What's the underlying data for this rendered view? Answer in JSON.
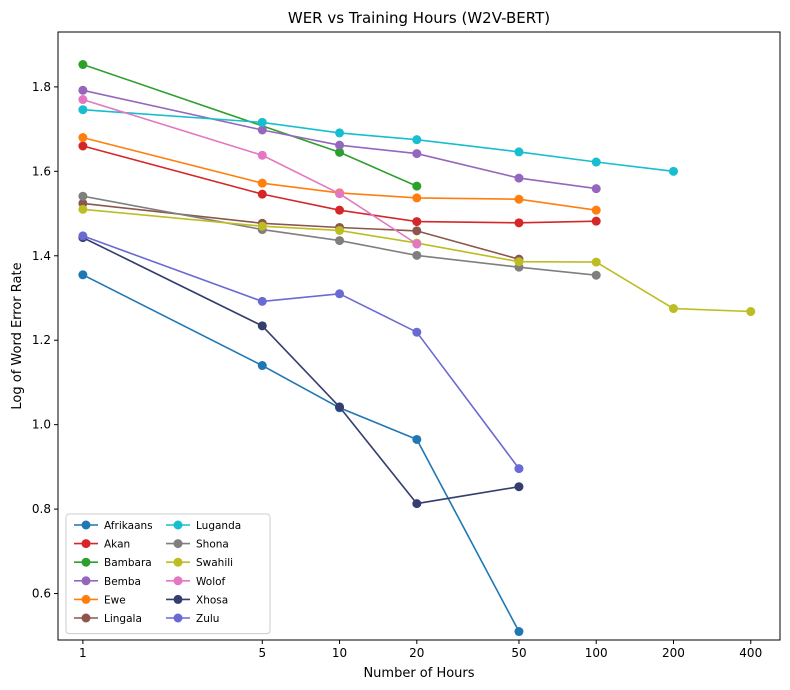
{
  "chart_data": {
    "type": "line",
    "title": "WER vs Training Hours (W2V-BERT)",
    "xlabel": "Number of Hours",
    "ylabel": "Log of Word Error Rate",
    "xscale": "log",
    "xlim": [
      0.8,
      520
    ],
    "ylim": [
      0.49,
      1.93
    ],
    "xticks": [
      1,
      5,
      10,
      20,
      50,
      100,
      200,
      400
    ],
    "xtick_labels": [
      "1",
      "5",
      "10",
      "20",
      "50",
      "100",
      "200",
      "400"
    ],
    "yticks": [
      0.6,
      0.8,
      1.0,
      1.2,
      1.4,
      1.6,
      1.8
    ],
    "ytick_labels": [
      "0.6",
      "0.8",
      "1.0",
      "1.2",
      "1.4",
      "1.6",
      "1.8"
    ],
    "grid": false,
    "legend_position": "bottom-left",
    "legend_columns": 2,
    "series": [
      {
        "name": "Afrikaans",
        "color": "#1f77b4",
        "x": [
          1,
          5,
          10,
          20,
          50
        ],
        "y": [
          1.355,
          1.14,
          1.04,
          0.965,
          0.51
        ]
      },
      {
        "name": "Akan",
        "color": "#d62728",
        "x": [
          1,
          5,
          10,
          20,
          50,
          100
        ],
        "y": [
          1.66,
          1.546,
          1.508,
          1.481,
          1.478,
          1.482
        ]
      },
      {
        "name": "Bambara",
        "color": "#2ca02c",
        "x": [
          1,
          10,
          20
        ],
        "y": [
          1.853,
          1.645,
          1.565
        ]
      },
      {
        "name": "Bemba",
        "color": "#9467bd",
        "x": [
          1,
          5,
          10,
          20,
          50,
          100
        ],
        "y": [
          1.792,
          1.698,
          1.662,
          1.642,
          1.584,
          1.559
        ]
      },
      {
        "name": "Ewe",
        "color": "#ff7f0e",
        "x": [
          1,
          5,
          10,
          20,
          50,
          100
        ],
        "y": [
          1.68,
          1.572,
          1.549,
          1.537,
          1.534,
          1.508
        ]
      },
      {
        "name": "Lingala",
        "color": "#8c564b",
        "x": [
          1,
          5,
          10,
          20,
          50
        ],
        "y": [
          1.524,
          1.477,
          1.467,
          1.459,
          1.392
        ]
      },
      {
        "name": "Luganda",
        "color": "#17becf",
        "x": [
          1,
          5,
          10,
          20,
          50,
          100,
          200
        ],
        "y": [
          1.746,
          1.716,
          1.691,
          1.675,
          1.646,
          1.622,
          1.6
        ]
      },
      {
        "name": "Shona",
        "color": "#7f7f7f",
        "x": [
          1,
          5,
          10,
          20,
          50,
          100
        ],
        "y": [
          1.541,
          1.462,
          1.436,
          1.401,
          1.373,
          1.354
        ]
      },
      {
        "name": "Swahili",
        "color": "#bcbd22",
        "x": [
          1,
          5,
          10,
          20,
          50,
          100,
          200,
          400
        ],
        "y": [
          1.51,
          1.47,
          1.46,
          1.43,
          1.386,
          1.385,
          1.275,
          1.268
        ]
      },
      {
        "name": "Wolof",
        "color": "#e377c2",
        "x": [
          1,
          5,
          10,
          20
        ],
        "y": [
          1.77,
          1.638,
          1.547,
          1.428
        ]
      },
      {
        "name": "Xhosa",
        "color": "#343e6f",
        "x": [
          1,
          5,
          10,
          20,
          50
        ],
        "y": [
          1.443,
          1.234,
          1.042,
          0.813,
          0.853
        ]
      },
      {
        "name": "Zulu",
        "color": "#6a6ad3",
        "x": [
          1,
          5,
          10,
          20,
          50
        ],
        "y": [
          1.447,
          1.292,
          1.31,
          1.219,
          0.896
        ]
      }
    ]
  }
}
